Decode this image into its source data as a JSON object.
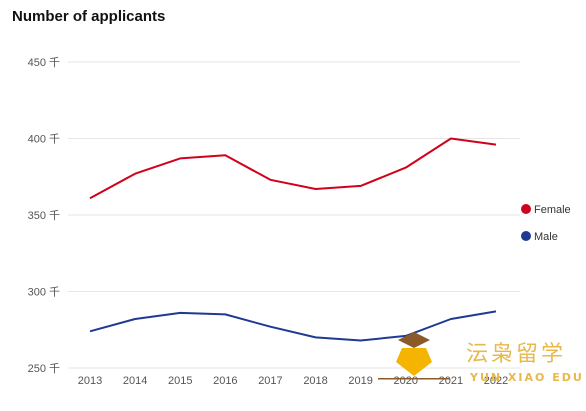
{
  "chart_data": {
    "type": "line",
    "title": "Number of applicants",
    "xlabel": "",
    "ylabel": "",
    "categories": [
      "2013",
      "2014",
      "2015",
      "2016",
      "2017",
      "2018",
      "2019",
      "2020",
      "2021",
      "2022"
    ],
    "series": [
      {
        "name": "Female",
        "color": "#d0021b",
        "values": [
          361,
          377,
          387,
          389,
          373,
          367,
          369,
          381,
          400,
          396
        ]
      },
      {
        "name": "Male",
        "color": "#1f3a93",
        "values": [
          274,
          282,
          286,
          285,
          277,
          270,
          268,
          271,
          282,
          287
        ]
      }
    ],
    "yticks": [
      {
        "value": 250,
        "label": "250 千"
      },
      {
        "value": 300,
        "label": "300 千"
      },
      {
        "value": 350,
        "label": "350 千"
      },
      {
        "value": 400,
        "label": "400 千"
      },
      {
        "value": 450,
        "label": "450 千"
      }
    ],
    "ylim": [
      250,
      450
    ],
    "grid": true,
    "legend_position": "right"
  },
  "watermark": {
    "chinese": "沄枭留学",
    "english": "YUN XIAO EDU"
  }
}
